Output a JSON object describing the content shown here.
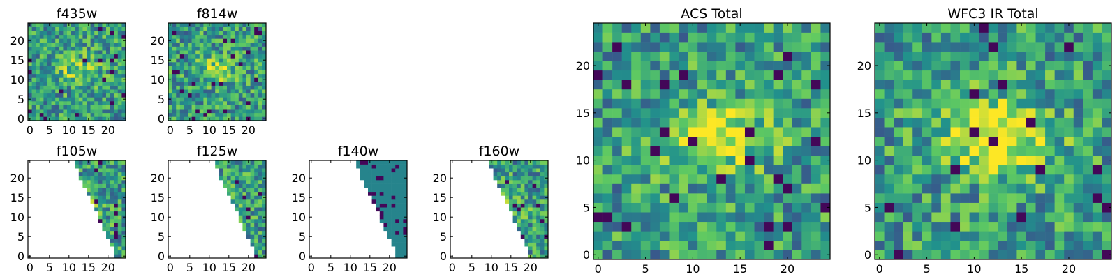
{
  "chart_data": [
    {
      "type": "heatmap",
      "title": "f435w",
      "coverage": "full",
      "values_note": "noisy per-pixel map, brighter blob near center",
      "xlim": [
        -0.5,
        24.5
      ],
      "ylim": [
        -0.5,
        24.5
      ],
      "xticks": [
        0,
        5,
        10,
        15,
        20
      ],
      "yticks": [
        0,
        5,
        10,
        15,
        20
      ],
      "colormap": "viridis",
      "grid": false
    },
    {
      "type": "heatmap",
      "title": "f814w",
      "coverage": "full",
      "xlim": [
        -0.5,
        24.5
      ],
      "ylim": [
        -0.5,
        24.5
      ],
      "xticks": [
        0,
        5,
        10,
        15,
        20
      ],
      "yticks": [
        0,
        5,
        10,
        15,
        20
      ],
      "colormap": "viridis",
      "grid": false
    },
    {
      "type": "heatmap",
      "title": "f105w",
      "coverage": "right-edge wedge only",
      "xlim": [
        -0.5,
        24.5
      ],
      "ylim": [
        -0.5,
        24.5
      ],
      "xticks": [
        0,
        5,
        10,
        15,
        20
      ],
      "yticks": [
        0,
        5,
        10,
        15,
        20
      ],
      "colormap": "viridis",
      "grid": false
    },
    {
      "type": "heatmap",
      "title": "f125w",
      "coverage": "right-edge wedge only",
      "xlim": [
        -0.5,
        24.5
      ],
      "ylim": [
        -0.5,
        24.5
      ],
      "xticks": [
        0,
        5,
        10,
        15,
        20
      ],
      "yticks": [
        0,
        5,
        10,
        15,
        20
      ],
      "colormap": "viridis",
      "grid": false
    },
    {
      "type": "heatmap",
      "title": "f140w",
      "coverage": "right-edge wedge only",
      "xlim": [
        -0.5,
        24.5
      ],
      "ylim": [
        -0.5,
        24.5
      ],
      "xticks": [
        0,
        5,
        10,
        15,
        20
      ],
      "yticks": [
        0,
        5,
        10,
        15,
        20
      ],
      "colormap": "viridis",
      "grid": false
    },
    {
      "type": "heatmap",
      "title": "f160w",
      "coverage": "right-edge wedge only",
      "xlim": [
        -0.5,
        24.5
      ],
      "ylim": [
        -0.5,
        24.5
      ],
      "xticks": [
        0,
        5,
        10,
        15,
        20
      ],
      "yticks": [
        0,
        5,
        10,
        15,
        20
      ],
      "colormap": "viridis",
      "grid": false
    },
    {
      "type": "heatmap",
      "title": "ACS Total",
      "coverage": "full",
      "xlim": [
        -0.5,
        24.5
      ],
      "ylim": [
        -0.5,
        24.5
      ],
      "xticks": [
        0,
        5,
        10,
        15,
        20
      ],
      "yticks": [
        0,
        5,
        10,
        15,
        20
      ],
      "colormap": "viridis",
      "grid": false
    },
    {
      "type": "heatmap",
      "title": "WFC3 IR Total",
      "coverage": "full",
      "xlim": [
        -0.5,
        24.5
      ],
      "ylim": [
        -0.5,
        24.5
      ],
      "xticks": [
        0,
        5,
        10,
        15,
        20
      ],
      "yticks": [
        0,
        5,
        10,
        15,
        20
      ],
      "colormap": "viridis",
      "grid": false
    }
  ],
  "colors": {
    "background": "#ffffff",
    "viridis_dark": "#440154",
    "viridis_teal": "#21918c",
    "viridis_green": "#5ec962",
    "viridis_yellow": "#fde725"
  }
}
